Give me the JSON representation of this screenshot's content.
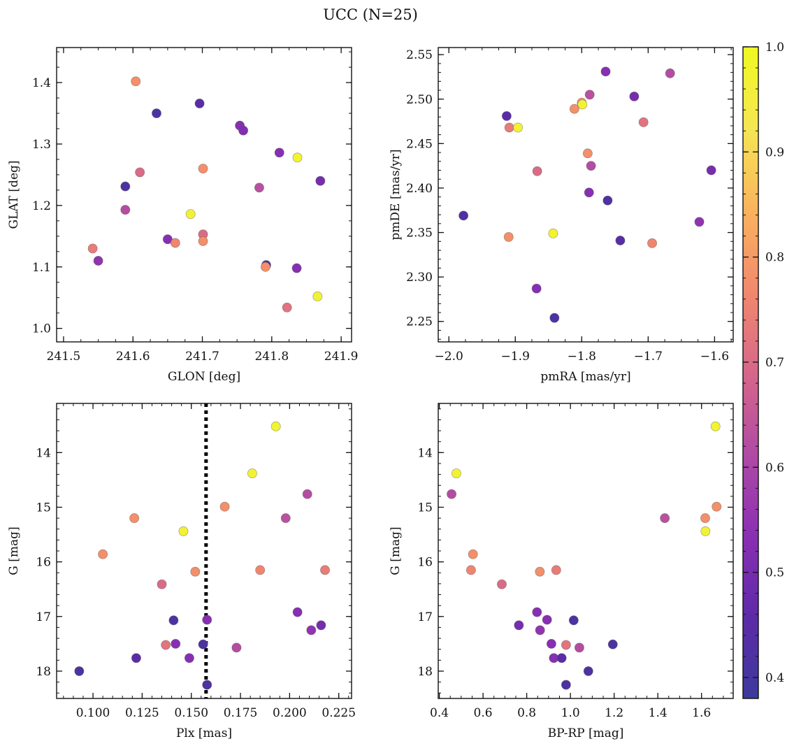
{
  "figure": {
    "title": "UCC (N=25)"
  },
  "colorbar": {
    "min": 0.38,
    "max": 1.0,
    "ticks": [
      "0.4",
      "0.5",
      "0.6",
      "0.7",
      "0.8",
      "0.9",
      "1.0"
    ],
    "tick_values": [
      0.4,
      0.5,
      0.6,
      0.7,
      0.8,
      0.9,
      1.0
    ],
    "colormap": [
      "#3c3a9c",
      "#5d2aa8",
      "#8a2fb3",
      "#b04aa4",
      "#d6678a",
      "#f2886d",
      "#fbb35d",
      "#f5e653",
      "#f0f921"
    ]
  },
  "chart_data": [
    {
      "type": "scatter",
      "title": "",
      "xlabel": "GLON [deg]",
      "ylabel": "GLAT [deg]",
      "xlim": [
        241.49,
        241.915
      ],
      "ylim": [
        0.978,
        1.457
      ],
      "xticks": [
        241.5,
        241.6,
        241.7,
        241.8,
        241.9
      ],
      "xtick_labels": [
        "241.5",
        "241.6",
        "241.7",
        "241.8",
        "241.9"
      ],
      "yticks": [
        1.0,
        1.1,
        1.2,
        1.3,
        1.4
      ],
      "ytick_labels": [
        "1.0",
        "1.1",
        "1.2",
        "1.3",
        "1.4"
      ],
      "xminor": 0.025,
      "yminor": 0.025,
      "y_inverted": false,
      "points": [
        {
          "x": 241.604,
          "y": 1.402,
          "c": 0.78
        },
        {
          "x": 241.634,
          "y": 1.35,
          "c": 0.42
        },
        {
          "x": 241.696,
          "y": 1.366,
          "c": 0.45
        },
        {
          "x": 241.754,
          "y": 1.33,
          "c": 0.53
        },
        {
          "x": 241.759,
          "y": 1.322,
          "c": 0.52
        },
        {
          "x": 241.811,
          "y": 1.286,
          "c": 0.53
        },
        {
          "x": 241.837,
          "y": 1.278,
          "c": 0.98
        },
        {
          "x": 241.701,
          "y": 1.26,
          "c": 0.78
        },
        {
          "x": 241.61,
          "y": 1.254,
          "c": 0.7
        },
        {
          "x": 241.87,
          "y": 1.24,
          "c": 0.5
        },
        {
          "x": 241.589,
          "y": 1.231,
          "c": 0.42
        },
        {
          "x": 241.782,
          "y": 1.229,
          "c": 0.63
        },
        {
          "x": 241.589,
          "y": 1.193,
          "c": 0.62
        },
        {
          "x": 241.683,
          "y": 1.186,
          "c": 0.97
        },
        {
          "x": 241.701,
          "y": 1.153,
          "c": 0.7
        },
        {
          "x": 241.65,
          "y": 1.145,
          "c": 0.53
        },
        {
          "x": 241.661,
          "y": 1.139,
          "c": 0.76
        },
        {
          "x": 241.701,
          "y": 1.142,
          "c": 0.78
        },
        {
          "x": 241.542,
          "y": 1.13,
          "c": 0.74
        },
        {
          "x": 241.55,
          "y": 1.11,
          "c": 0.55
        },
        {
          "x": 241.792,
          "y": 1.103,
          "c": 0.42
        },
        {
          "x": 241.791,
          "y": 1.1,
          "c": 0.78
        },
        {
          "x": 241.836,
          "y": 1.098,
          "c": 0.53
        },
        {
          "x": 241.822,
          "y": 1.034,
          "c": 0.72
        },
        {
          "x": 241.866,
          "y": 1.052,
          "c": 0.97
        }
      ]
    },
    {
      "type": "scatter",
      "title": "",
      "xlabel": "pmRA [mas/yr]",
      "ylabel": "pmDE [mas/yr]",
      "xlim": [
        -2.016,
        -1.572
      ],
      "ylim": [
        2.227,
        2.558
      ],
      "xticks": [
        -2.0,
        -1.9,
        -1.8,
        -1.7,
        -1.6
      ],
      "xtick_labels": [
        "−2.0",
        "−1.9",
        "−1.8",
        "−1.7",
        "−1.6"
      ],
      "yticks": [
        2.25,
        2.3,
        2.35,
        2.4,
        2.45,
        2.5,
        2.55
      ],
      "ytick_labels": [
        "2.25",
        "2.30",
        "2.35",
        "2.40",
        "2.45",
        "2.50",
        "2.55"
      ],
      "xminor": 0.025,
      "yminor": 0.01,
      "y_inverted": false,
      "points": [
        {
          "x": -1.764,
          "y": 2.531,
          "c": 0.53
        },
        {
          "x": -1.667,
          "y": 2.529,
          "c": 0.62
        },
        {
          "x": -1.788,
          "y": 2.505,
          "c": 0.63
        },
        {
          "x": -1.721,
          "y": 2.503,
          "c": 0.5
        },
        {
          "x": -1.8,
          "y": 2.496,
          "c": 0.78
        },
        {
          "x": -1.799,
          "y": 2.494,
          "c": 0.97
        },
        {
          "x": -1.811,
          "y": 2.489,
          "c": 0.78
        },
        {
          "x": -1.913,
          "y": 2.481,
          "c": 0.45
        },
        {
          "x": -1.909,
          "y": 2.468,
          "c": 0.74
        },
        {
          "x": -1.896,
          "y": 2.468,
          "c": 0.97
        },
        {
          "x": -1.707,
          "y": 2.474,
          "c": 0.72
        },
        {
          "x": -1.791,
          "y": 2.439,
          "c": 0.78
        },
        {
          "x": -1.786,
          "y": 2.425,
          "c": 0.62
        },
        {
          "x": -1.867,
          "y": 2.419,
          "c": 0.7
        },
        {
          "x": -1.605,
          "y": 2.42,
          "c": 0.5
        },
        {
          "x": -1.789,
          "y": 2.395,
          "c": 0.53
        },
        {
          "x": -1.761,
          "y": 2.386,
          "c": 0.42
        },
        {
          "x": -1.978,
          "y": 2.369,
          "c": 0.42
        },
        {
          "x": -1.623,
          "y": 2.362,
          "c": 0.55
        },
        {
          "x": -1.843,
          "y": 2.349,
          "c": 0.98
        },
        {
          "x": -1.91,
          "y": 2.345,
          "c": 0.78
        },
        {
          "x": -1.742,
          "y": 2.341,
          "c": 0.45
        },
        {
          "x": -1.694,
          "y": 2.338,
          "c": 0.76
        },
        {
          "x": -1.868,
          "y": 2.287,
          "c": 0.53
        },
        {
          "x": -1.841,
          "y": 2.254,
          "c": 0.42
        }
      ]
    },
    {
      "type": "scatter",
      "title": "",
      "xlabel": "Plx [mas]",
      "ylabel": "G [mag]",
      "xlim": [
        0.0815,
        0.2315
      ],
      "ylim": [
        13.1,
        18.5
      ],
      "xticks": [
        0.1,
        0.125,
        0.15,
        0.175,
        0.2,
        0.225
      ],
      "xtick_labels": [
        "0.100",
        "0.125",
        "0.150",
        "0.175",
        "0.200",
        "0.225"
      ],
      "yticks": [
        14,
        15,
        16,
        17,
        18
      ],
      "ytick_labels": [
        "14",
        "15",
        "16",
        "17",
        "18"
      ],
      "xminor": 0.005,
      "yminor": 0.2,
      "y_inverted": true,
      "vline": {
        "x": 0.1575,
        "style": "dotted"
      },
      "points": [
        {
          "x": 0.193,
          "y": 13.52,
          "c": 0.98
        },
        {
          "x": 0.181,
          "y": 14.38,
          "c": 0.97
        },
        {
          "x": 0.209,
          "y": 14.76,
          "c": 0.62
        },
        {
          "x": 0.167,
          "y": 14.99,
          "c": 0.78
        },
        {
          "x": 0.121,
          "y": 15.2,
          "c": 0.78
        },
        {
          "x": 0.198,
          "y": 15.2,
          "c": 0.63
        },
        {
          "x": 0.146,
          "y": 15.44,
          "c": 0.97
        },
        {
          "x": 0.105,
          "y": 15.86,
          "c": 0.78
        },
        {
          "x": 0.152,
          "y": 16.18,
          "c": 0.78
        },
        {
          "x": 0.185,
          "y": 16.15,
          "c": 0.76
        },
        {
          "x": 0.218,
          "y": 16.15,
          "c": 0.74
        },
        {
          "x": 0.135,
          "y": 16.41,
          "c": 0.7
        },
        {
          "x": 0.204,
          "y": 16.92,
          "c": 0.53
        },
        {
          "x": 0.141,
          "y": 17.07,
          "c": 0.42
        },
        {
          "x": 0.158,
          "y": 17.06,
          "c": 0.53
        },
        {
          "x": 0.216,
          "y": 17.16,
          "c": 0.5
        },
        {
          "x": 0.211,
          "y": 17.25,
          "c": 0.55
        },
        {
          "x": 0.137,
          "y": 17.52,
          "c": 0.72
        },
        {
          "x": 0.142,
          "y": 17.5,
          "c": 0.53
        },
        {
          "x": 0.156,
          "y": 17.51,
          "c": 0.42
        },
        {
          "x": 0.173,
          "y": 17.57,
          "c": 0.62
        },
        {
          "x": 0.122,
          "y": 17.76,
          "c": 0.45
        },
        {
          "x": 0.149,
          "y": 17.76,
          "c": 0.53
        },
        {
          "x": 0.093,
          "y": 18.0,
          "c": 0.42
        },
        {
          "x": 0.158,
          "y": 18.25,
          "c": 0.42
        }
      ]
    },
    {
      "type": "scatter",
      "title": "",
      "xlabel": "BP-RP [mag]",
      "ylabel": "G [mag]",
      "xlim": [
        0.395,
        1.745
      ],
      "ylim": [
        13.1,
        18.5
      ],
      "xticks": [
        0.4,
        0.6,
        0.8,
        1.0,
        1.2,
        1.4,
        1.6
      ],
      "xtick_labels": [
        "0.4",
        "0.6",
        "0.8",
        "1.0",
        "1.2",
        "1.4",
        "1.6"
      ],
      "yticks": [
        14,
        15,
        16,
        17,
        18
      ],
      "ytick_labels": [
        "14",
        "15",
        "16",
        "17",
        "18"
      ],
      "xminor": 0.05,
      "yminor": 0.2,
      "y_inverted": true,
      "points": [
        {
          "x": 1.664,
          "y": 13.52,
          "c": 0.98
        },
        {
          "x": 0.478,
          "y": 14.38,
          "c": 0.97
        },
        {
          "x": 0.456,
          "y": 14.76,
          "c": 0.62
        },
        {
          "x": 1.669,
          "y": 14.99,
          "c": 0.78
        },
        {
          "x": 1.432,
          "y": 15.2,
          "c": 0.63
        },
        {
          "x": 1.617,
          "y": 15.2,
          "c": 0.78
        },
        {
          "x": 1.618,
          "y": 15.44,
          "c": 0.97
        },
        {
          "x": 0.554,
          "y": 15.86,
          "c": 0.78
        },
        {
          "x": 0.545,
          "y": 16.15,
          "c": 0.76
        },
        {
          "x": 0.86,
          "y": 16.18,
          "c": 0.78
        },
        {
          "x": 0.935,
          "y": 16.15,
          "c": 0.74
        },
        {
          "x": 0.686,
          "y": 16.41,
          "c": 0.7
        },
        {
          "x": 0.847,
          "y": 16.92,
          "c": 0.53
        },
        {
          "x": 0.893,
          "y": 17.06,
          "c": 0.53
        },
        {
          "x": 1.015,
          "y": 17.07,
          "c": 0.42
        },
        {
          "x": 0.764,
          "y": 17.16,
          "c": 0.5
        },
        {
          "x": 0.861,
          "y": 17.25,
          "c": 0.55
        },
        {
          "x": 0.913,
          "y": 17.5,
          "c": 0.53
        },
        {
          "x": 0.98,
          "y": 17.52,
          "c": 0.72
        },
        {
          "x": 1.194,
          "y": 17.51,
          "c": 0.42
        },
        {
          "x": 1.041,
          "y": 17.57,
          "c": 0.62
        },
        {
          "x": 0.924,
          "y": 17.76,
          "c": 0.53
        },
        {
          "x": 0.96,
          "y": 17.76,
          "c": 0.45
        },
        {
          "x": 1.082,
          "y": 18.0,
          "c": 0.42
        },
        {
          "x": 0.98,
          "y": 18.25,
          "c": 0.42
        }
      ]
    }
  ]
}
